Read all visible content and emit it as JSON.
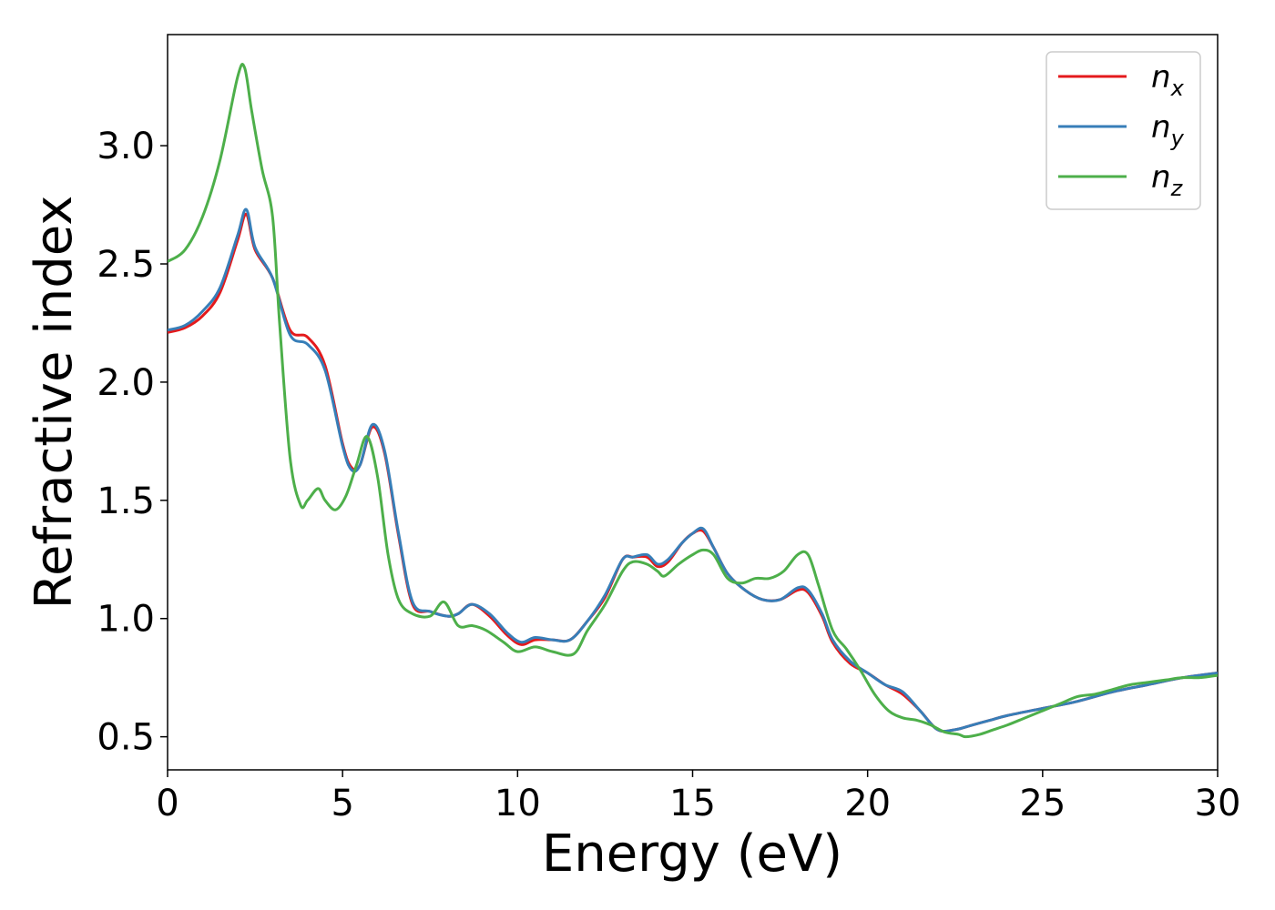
{
  "chart_data": {
    "type": "line",
    "xlabel": "Energy (eV)",
    "ylabel": "Refractive index",
    "xlim": [
      0,
      30
    ],
    "ylim": [
      0.36,
      3.47
    ],
    "xticks": [
      0,
      5,
      10,
      15,
      20,
      25,
      30
    ],
    "xtick_labels": [
      "0",
      "5",
      "10",
      "15",
      "20",
      "25",
      "30"
    ],
    "yticks": [
      0.5,
      1.0,
      1.5,
      2.0,
      2.5,
      3.0
    ],
    "ytick_labels": [
      "0.5",
      "1.0",
      "1.5",
      "2.0",
      "2.5",
      "3.0"
    ],
    "grid": false,
    "legend_position": "top-right",
    "series": [
      {
        "name": "n_x",
        "label_base": "n",
        "label_sub": "x",
        "color": "#e41a1c",
        "x": [
          0,
          0.5,
          1.0,
          1.5,
          2.0,
          2.25,
          2.5,
          3.0,
          3.5,
          4.0,
          4.5,
          5.0,
          5.25,
          5.5,
          5.85,
          6.2,
          6.6,
          7.0,
          7.5,
          8.0,
          8.3,
          8.7,
          9.2,
          9.7,
          10.1,
          10.5,
          11.0,
          11.5,
          12.0,
          12.5,
          13.0,
          13.3,
          13.7,
          14.0,
          14.3,
          14.7,
          15.0,
          15.3,
          15.6,
          16.0,
          16.5,
          17.0,
          17.5,
          18.0,
          18.3,
          18.7,
          19.0,
          19.5,
          20.0,
          20.5,
          21.0,
          21.5,
          22.0,
          22.5,
          23.0,
          23.5,
          24.0,
          25.0,
          26.0,
          27.0,
          28.0,
          29.0,
          30.0
        ],
        "y": [
          2.21,
          2.23,
          2.28,
          2.38,
          2.6,
          2.71,
          2.56,
          2.44,
          2.22,
          2.19,
          2.07,
          1.74,
          1.64,
          1.65,
          1.81,
          1.7,
          1.35,
          1.06,
          1.03,
          1.01,
          1.02,
          1.06,
          1.01,
          0.93,
          0.89,
          0.91,
          0.91,
          0.91,
          0.99,
          1.09,
          1.25,
          1.26,
          1.26,
          1.22,
          1.24,
          1.32,
          1.36,
          1.37,
          1.3,
          1.19,
          1.12,
          1.08,
          1.08,
          1.12,
          1.11,
          1.01,
          0.9,
          0.81,
          0.77,
          0.72,
          0.68,
          0.61,
          0.53,
          0.53,
          0.55,
          0.57,
          0.59,
          0.62,
          0.65,
          0.69,
          0.72,
          0.75,
          0.77
        ]
      },
      {
        "name": "n_y",
        "label_base": "n",
        "label_sub": "y",
        "color": "#377eb8",
        "x": [
          0,
          0.5,
          1.0,
          1.5,
          2.0,
          2.25,
          2.5,
          3.0,
          3.5,
          4.0,
          4.5,
          5.0,
          5.25,
          5.5,
          5.85,
          6.2,
          6.6,
          7.0,
          7.5,
          8.0,
          8.3,
          8.7,
          9.2,
          9.7,
          10.1,
          10.5,
          11.0,
          11.5,
          12.0,
          12.5,
          13.0,
          13.3,
          13.7,
          14.0,
          14.3,
          14.7,
          15.0,
          15.3,
          15.6,
          16.0,
          16.5,
          17.0,
          17.5,
          18.0,
          18.3,
          18.7,
          19.0,
          19.5,
          20.0,
          20.5,
          21.0,
          21.5,
          22.0,
          22.5,
          23.0,
          23.5,
          24.0,
          25.0,
          26.0,
          27.0,
          28.0,
          29.0,
          30.0
        ],
        "y": [
          2.22,
          2.24,
          2.3,
          2.4,
          2.62,
          2.73,
          2.57,
          2.44,
          2.2,
          2.16,
          2.05,
          1.73,
          1.63,
          1.65,
          1.82,
          1.71,
          1.36,
          1.07,
          1.03,
          1.01,
          1.02,
          1.06,
          1.02,
          0.94,
          0.9,
          0.92,
          0.91,
          0.91,
          0.99,
          1.1,
          1.25,
          1.26,
          1.27,
          1.23,
          1.25,
          1.32,
          1.36,
          1.38,
          1.3,
          1.19,
          1.12,
          1.08,
          1.08,
          1.13,
          1.12,
          1.02,
          0.91,
          0.82,
          0.77,
          0.72,
          0.69,
          0.61,
          0.53,
          0.53,
          0.55,
          0.57,
          0.59,
          0.62,
          0.65,
          0.69,
          0.72,
          0.75,
          0.77
        ]
      },
      {
        "name": "n_z",
        "label_base": "n",
        "label_sub": "z",
        "color": "#4daf4a",
        "x": [
          0,
          0.5,
          1.0,
          1.5,
          2.0,
          2.2,
          2.4,
          2.7,
          3.0,
          3.2,
          3.5,
          3.8,
          4.0,
          4.3,
          4.5,
          4.8,
          5.1,
          5.4,
          5.7,
          6.0,
          6.3,
          6.6,
          7.0,
          7.5,
          7.9,
          8.3,
          8.7,
          9.1,
          9.6,
          10.0,
          10.5,
          11.0,
          11.6,
          12.0,
          12.5,
          13.0,
          13.3,
          13.7,
          14.0,
          14.2,
          14.6,
          15.0,
          15.3,
          15.6,
          16.0,
          16.4,
          16.8,
          17.2,
          17.6,
          18.0,
          18.3,
          18.6,
          19.0,
          19.4,
          19.8,
          20.2,
          20.6,
          21.0,
          21.4,
          21.8,
          22.2,
          22.6,
          22.8,
          23.2,
          23.6,
          24.0,
          24.5,
          25.0,
          25.5,
          26.0,
          26.5,
          27.0,
          27.5,
          28.0,
          28.5,
          29.0,
          29.5,
          30.0
        ],
        "y": [
          2.51,
          2.56,
          2.7,
          2.94,
          3.29,
          3.33,
          3.15,
          2.9,
          2.7,
          2.25,
          1.68,
          1.48,
          1.5,
          1.55,
          1.5,
          1.46,
          1.52,
          1.65,
          1.77,
          1.6,
          1.27,
          1.08,
          1.02,
          1.01,
          1.07,
          0.97,
          0.97,
          0.95,
          0.9,
          0.86,
          0.88,
          0.86,
          0.85,
          0.95,
          1.06,
          1.2,
          1.24,
          1.23,
          1.2,
          1.18,
          1.23,
          1.27,
          1.29,
          1.27,
          1.17,
          1.15,
          1.17,
          1.17,
          1.2,
          1.27,
          1.27,
          1.14,
          0.95,
          0.87,
          0.78,
          0.68,
          0.61,
          0.58,
          0.57,
          0.55,
          0.52,
          0.51,
          0.5,
          0.51,
          0.53,
          0.55,
          0.58,
          0.61,
          0.64,
          0.67,
          0.68,
          0.7,
          0.72,
          0.73,
          0.74,
          0.75,
          0.75,
          0.76
        ]
      }
    ]
  }
}
